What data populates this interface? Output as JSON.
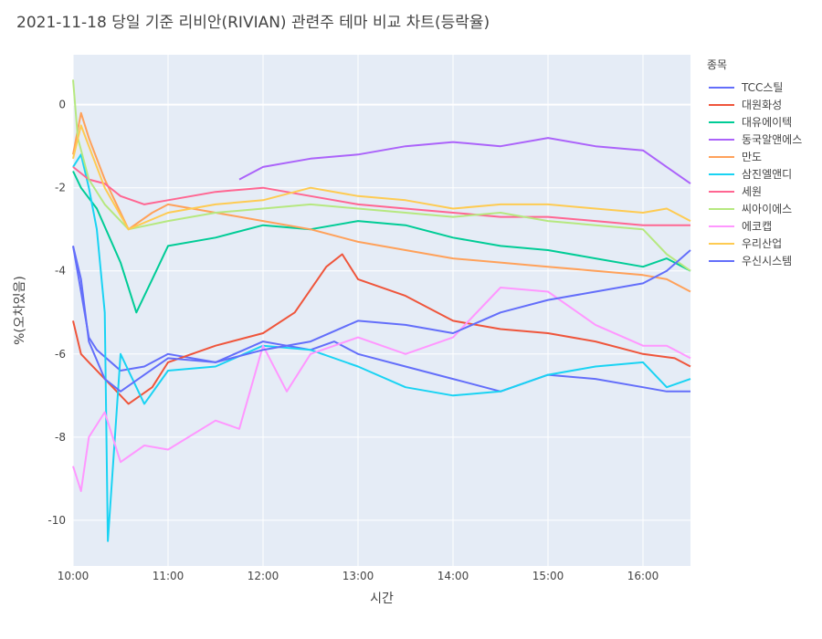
{
  "chart_data": {
    "type": "line",
    "title": "2021-11-18 당일 기준 리비안(RIVIAN) 관련주 테마 비교 차트(등락율)",
    "xlabel": "시간",
    "ylabel": "%(오차있음)",
    "legend_title": "종목",
    "legend_position": "right",
    "grid": true,
    "xlim": [
      "10:00",
      "16:30"
    ],
    "ylim": [
      -11.1,
      1.2
    ],
    "x_ticks": [
      "10:00",
      "11:00",
      "12:00",
      "13:00",
      "14:00",
      "15:00",
      "16:00"
    ],
    "y_ticks": [
      0,
      -2,
      -4,
      -6,
      -8,
      -10
    ],
    "series": [
      {
        "name": "TCC스틸",
        "color": "#636efa",
        "x": [
          "10:00",
          "10:05",
          "10:10",
          "10:15",
          "10:30",
          "10:45",
          "11:00",
          "11:30",
          "12:00",
          "12:15",
          "12:30",
          "12:45",
          "13:00",
          "13:30",
          "14:00",
          "14:30",
          "15:00",
          "15:30",
          "16:00",
          "16:15",
          "16:30"
        ],
        "y": [
          -3.4,
          -4.5,
          -5.6,
          -5.9,
          -6.4,
          -6.3,
          -6.0,
          -6.2,
          -5.7,
          -5.8,
          -5.9,
          -5.7,
          -6.0,
          -6.3,
          -6.6,
          -6.9,
          -6.5,
          -6.6,
          -6.8,
          -6.9,
          -6.9
        ]
      },
      {
        "name": "대원화성",
        "color": "#EF553B",
        "x": [
          "10:00",
          "10:05",
          "10:10",
          "10:20",
          "10:35",
          "10:50",
          "11:00",
          "11:30",
          "12:00",
          "12:20",
          "12:40",
          "12:50",
          "13:00",
          "13:30",
          "14:00",
          "14:30",
          "15:00",
          "15:30",
          "16:00",
          "16:20",
          "16:30"
        ],
        "y": [
          -5.2,
          -6.0,
          -6.2,
          -6.6,
          -7.2,
          -6.8,
          -6.2,
          -5.8,
          -5.5,
          -5.0,
          -3.9,
          -3.6,
          -4.2,
          -4.6,
          -5.2,
          -5.4,
          -5.5,
          -5.7,
          -6.0,
          -6.1,
          -6.3
        ]
      },
      {
        "name": "대유에이텍",
        "color": "#00cc96",
        "x": [
          "10:00",
          "10:05",
          "10:15",
          "10:30",
          "10:40",
          "10:50",
          "11:00",
          "11:30",
          "12:00",
          "12:30",
          "13:00",
          "13:30",
          "14:00",
          "14:30",
          "15:00",
          "15:30",
          "16:00",
          "16:15",
          "16:30"
        ],
        "y": [
          -1.6,
          -2.0,
          -2.5,
          -3.8,
          -5.0,
          -4.2,
          -3.4,
          -3.2,
          -2.9,
          -3.0,
          -2.8,
          -2.9,
          -3.2,
          -3.4,
          -3.5,
          -3.7,
          -3.9,
          -3.7,
          -4.0
        ]
      },
      {
        "name": "동국알앤에스",
        "color": "#ab63fa",
        "x": [
          "11:45",
          "12:00",
          "12:30",
          "13:00",
          "13:30",
          "14:00",
          "14:30",
          "15:00",
          "15:30",
          "16:00",
          "16:15",
          "16:30"
        ],
        "y": [
          -1.8,
          -1.5,
          -1.3,
          -1.2,
          -1.0,
          -0.9,
          -1.0,
          -0.8,
          -1.0,
          -1.1,
          -1.5,
          -1.9
        ]
      },
      {
        "name": "만도",
        "color": "#FFA15A",
        "x": [
          "10:00",
          "10:05",
          "10:10",
          "10:20",
          "10:35",
          "10:50",
          "11:00",
          "11:30",
          "12:00",
          "12:30",
          "13:00",
          "13:30",
          "14:00",
          "14:30",
          "15:00",
          "15:30",
          "16:00",
          "16:15",
          "16:30"
        ],
        "y": [
          -1.2,
          -0.2,
          -0.8,
          -1.8,
          -3.0,
          -2.6,
          -2.4,
          -2.6,
          -2.8,
          -3.0,
          -3.3,
          -3.5,
          -3.7,
          -3.8,
          -3.9,
          -4.0,
          -4.1,
          -4.2,
          -4.5
        ]
      },
      {
        "name": "삼진엘앤디",
        "color": "#19d3f3",
        "x": [
          "10:00",
          "10:05",
          "10:10",
          "10:15",
          "10:20",
          "10:22",
          "10:30",
          "10:45",
          "11:00",
          "11:30",
          "12:00",
          "12:30",
          "13:00",
          "13:30",
          "14:00",
          "14:30",
          "15:00",
          "15:30",
          "16:00",
          "16:15",
          "16:30"
        ],
        "y": [
          -1.5,
          -1.2,
          -2.0,
          -3.0,
          -5.0,
          -10.5,
          -6.0,
          -7.2,
          -6.4,
          -6.3,
          -5.8,
          -5.9,
          -6.3,
          -6.8,
          -7.0,
          -6.9,
          -6.5,
          -6.3,
          -6.2,
          -6.8,
          -6.6
        ]
      },
      {
        "name": "세원",
        "color": "#FF6692",
        "x": [
          "10:00",
          "10:10",
          "10:20",
          "10:30",
          "10:45",
          "11:00",
          "11:30",
          "12:00",
          "12:30",
          "13:00",
          "13:30",
          "14:00",
          "14:30",
          "15:00",
          "15:30",
          "16:00",
          "16:30"
        ],
        "y": [
          -1.5,
          -1.8,
          -1.9,
          -2.2,
          -2.4,
          -2.3,
          -2.1,
          -2.0,
          -2.2,
          -2.4,
          -2.5,
          -2.6,
          -2.7,
          -2.7,
          -2.8,
          -2.9,
          -2.9
        ]
      },
      {
        "name": "씨아이에스",
        "color": "#B6E880",
        "x": [
          "10:00",
          "10:03",
          "10:10",
          "10:20",
          "10:35",
          "11:00",
          "11:30",
          "12:00",
          "12:30",
          "13:00",
          "13:30",
          "14:00",
          "14:30",
          "15:00",
          "15:30",
          "16:00",
          "16:15",
          "16:30"
        ],
        "y": [
          0.6,
          -0.8,
          -1.8,
          -2.4,
          -3.0,
          -2.8,
          -2.6,
          -2.5,
          -2.4,
          -2.5,
          -2.6,
          -2.7,
          -2.6,
          -2.8,
          -2.9,
          -3.0,
          -3.6,
          -4.0
        ]
      },
      {
        "name": "에코캡",
        "color": "#FF97FF",
        "x": [
          "10:00",
          "10:05",
          "10:10",
          "10:20",
          "10:30",
          "10:45",
          "11:00",
          "11:30",
          "11:45",
          "12:00",
          "12:15",
          "12:30",
          "13:00",
          "13:30",
          "14:00",
          "14:30",
          "15:00",
          "15:30",
          "16:00",
          "16:15",
          "16:30"
        ],
        "y": [
          -8.7,
          -9.3,
          -8.0,
          -7.4,
          -8.6,
          -8.2,
          -8.3,
          -7.6,
          -7.8,
          -5.8,
          -6.9,
          -6.0,
          -5.6,
          -6.0,
          -5.6,
          -4.4,
          -4.5,
          -5.3,
          -5.8,
          -5.8,
          -6.1
        ]
      },
      {
        "name": "우리산업",
        "color": "#FECB52",
        "x": [
          "10:00",
          "10:05",
          "10:10",
          "10:20",
          "10:35",
          "11:00",
          "11:30",
          "12:00",
          "12:30",
          "13:00",
          "13:30",
          "14:00",
          "14:30",
          "15:00",
          "15:30",
          "16:00",
          "16:15",
          "16:30"
        ],
        "y": [
          -1.3,
          -0.5,
          -1.0,
          -2.0,
          -3.0,
          -2.6,
          -2.4,
          -2.3,
          -2.0,
          -2.2,
          -2.3,
          -2.5,
          -2.4,
          -2.4,
          -2.5,
          -2.6,
          -2.5,
          -2.8
        ]
      },
      {
        "name": "우신시스템",
        "color": "#636efa",
        "x": [
          "10:00",
          "10:05",
          "10:10",
          "10:20",
          "10:30",
          "10:45",
          "11:00",
          "11:30",
          "12:00",
          "12:30",
          "13:00",
          "13:30",
          "14:00",
          "14:30",
          "15:00",
          "15:30",
          "16:00",
          "16:15",
          "16:30"
        ],
        "y": [
          -3.4,
          -4.2,
          -5.7,
          -6.6,
          -6.9,
          -6.5,
          -6.1,
          -6.2,
          -5.9,
          -5.7,
          -5.2,
          -5.3,
          -5.5,
          -5.0,
          -4.7,
          -4.5,
          -4.3,
          -4.0,
          -3.5
        ]
      }
    ]
  }
}
